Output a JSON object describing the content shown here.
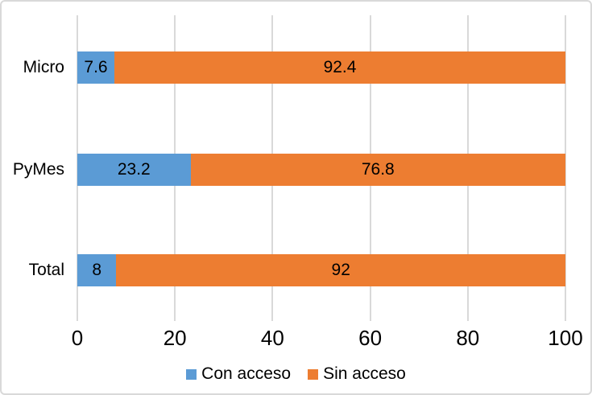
{
  "chart_data": {
    "type": "bar",
    "orientation": "horizontal",
    "stacked": true,
    "title": "",
    "xlabel": "",
    "ylabel": "",
    "categories": [
      "Micro",
      "PyMes",
      "Total"
    ],
    "series": [
      {
        "name": "Con acceso",
        "color": "#5B9BD5",
        "values": [
          7.6,
          23.2,
          8
        ]
      },
      {
        "name": "Sin acceso",
        "color": "#ED7D31",
        "values": [
          92.4,
          76.8,
          92
        ]
      }
    ],
    "data_labels": [
      [
        "7.6",
        "92.4"
      ],
      [
        "23.2",
        "76.8"
      ],
      [
        "8",
        "92"
      ]
    ],
    "xlim": [
      0,
      100
    ],
    "x_ticks": [
      "0",
      "20",
      "40",
      "60",
      "80",
      "100"
    ],
    "grid": "vertical-gridlines-on",
    "legend_position": "bottom"
  },
  "colors": {
    "series_blue": "#5B9BD5",
    "series_orange": "#ED7D31",
    "gridline": "#D9D9D9",
    "chart_border": "#D9D9D9",
    "text": "#000000"
  }
}
